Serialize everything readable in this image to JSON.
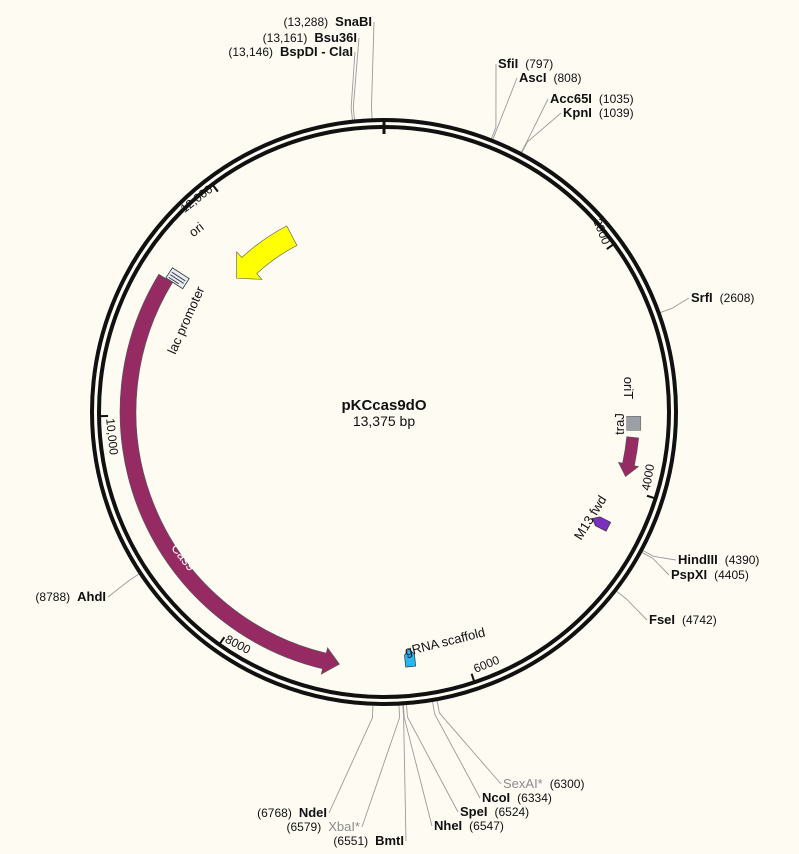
{
  "plasmid": {
    "name": "pKCcas9dO",
    "size_label": "13,375 bp",
    "length_bp": 13375
  },
  "ticks": [
    {
      "bp": 2000,
      "label": "2000"
    },
    {
      "bp": 4000,
      "label": "4000"
    },
    {
      "bp": 6000,
      "label": "6000"
    },
    {
      "bp": 8000,
      "label": "8000"
    },
    {
      "bp": 10000,
      "label": "10,000"
    },
    {
      "bp": 12000,
      "label": "12,000"
    }
  ],
  "features": [
    {
      "id": "ori",
      "label": "ori",
      "start": 12350,
      "end": 11600,
      "color": "#ffff00",
      "text_color": "#111111",
      "kind": "arrow"
    },
    {
      "id": "lac-promoter",
      "label": "lac promoter",
      "start": 11280,
      "end": 11230,
      "color": "#6b9bb8",
      "text_color": "#111111",
      "kind": "small"
    },
    {
      "id": "cas9",
      "label": "Cas9",
      "start": 11200,
      "end": 7060,
      "color": "#952b62",
      "text_color": "#ffffff",
      "kind": "arrow"
    },
    {
      "id": "orit",
      "label": "oriT",
      "start": 3380,
      "end": 3500,
      "color": "#9aa0a6",
      "text_color": "#111111",
      "kind": "block"
    },
    {
      "id": "traj",
      "label": "traJ",
      "start": 3560,
      "end": 3900,
      "color": "#952b62",
      "text_color": "#111111",
      "kind": "arrow"
    },
    {
      "id": "m13-fwd",
      "label": "M13 fwd",
      "start": 4330,
      "end": 4370,
      "color": "#7b2fbe",
      "text_color": "#111111",
      "kind": "small"
    },
    {
      "id": "grna-scaffold",
      "label": "gRNA scaffold",
      "start": 6510,
      "end": 6420,
      "color": "#29b6f6",
      "text_color": "#111111",
      "kind": "small"
    }
  ],
  "sites": [
    {
      "name": "SnaBI",
      "pos_label": "(13,288)",
      "dim": false
    },
    {
      "name": "Bsu36I",
      "pos_label": "(13,161)",
      "dim": false
    },
    {
      "name": "BspDI - ClaI",
      "pos_label": "(13,146)",
      "dim": false
    },
    {
      "name": "SfiI",
      "pos_label": "(797)",
      "dim": false
    },
    {
      "name": "AscI",
      "pos_label": "(808)",
      "dim": false
    },
    {
      "name": "Acc65I",
      "pos_label": "(1035)",
      "dim": false
    },
    {
      "name": "KpnI",
      "pos_label": "(1039)",
      "dim": false
    },
    {
      "name": "SrfI",
      "pos_label": "(2608)",
      "dim": false
    },
    {
      "name": "HindIII",
      "pos_label": "(4390)",
      "dim": false
    },
    {
      "name": "PspXI",
      "pos_label": "(4405)",
      "dim": false
    },
    {
      "name": "FseI",
      "pos_label": "(4742)",
      "dim": false
    },
    {
      "name": "SexAI*",
      "pos_label": "(6300)",
      "dim": true
    },
    {
      "name": "NcoI",
      "pos_label": "(6334)",
      "dim": false
    },
    {
      "name": "SpeI",
      "pos_label": "(6524)",
      "dim": false
    },
    {
      "name": "NheI",
      "pos_label": "(6547)",
      "dim": false
    },
    {
      "name": "BmtI",
      "pos_label": "(6551)",
      "dim": false
    },
    {
      "name": "XbaI*",
      "pos_label": "(6579)",
      "dim": true
    },
    {
      "name": "NdeI",
      "pos_label": "(6768)",
      "dim": false
    },
    {
      "name": "AhdI",
      "pos_label": "(8788)",
      "dim": false
    }
  ]
}
